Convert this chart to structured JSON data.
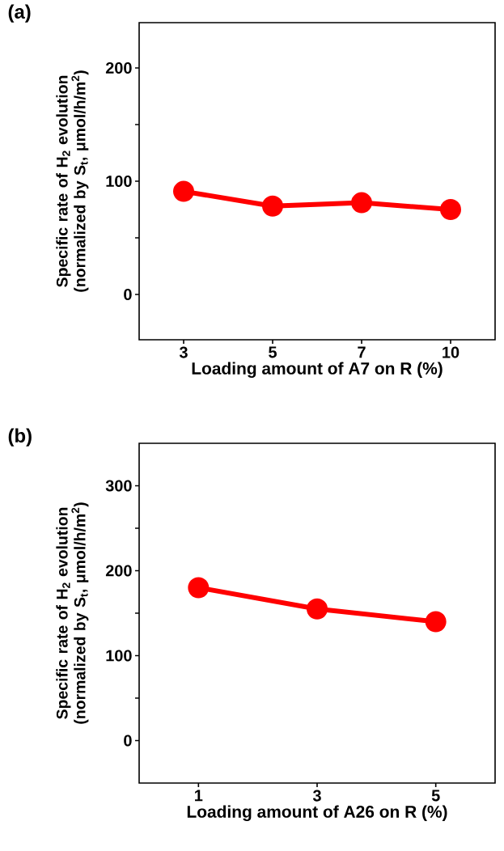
{
  "chart_data": [
    {
      "type": "line",
      "annotations": [
        "(a)"
      ],
      "xlabel": "Loading amount of A7 on R (%)",
      "ylabel": "Specific rate of H$_{2}$ evolution (normalized by S$_{t}$, μmol/h/m$^{2}$)",
      "categories": [
        "3",
        "5",
        "7",
        "10"
      ],
      "series": [
        {
          "color": "#ff0000",
          "values": [
            91,
            78,
            81,
            75
          ]
        }
      ],
      "ylim": [
        -40,
        240
      ],
      "yticks": [
        0,
        {
          "value": 50,
          "label": null
        },
        100,
        {
          "value": 150,
          "label": null
        },
        200
      ],
      "marker": "circle",
      "line_style": "solid"
    },
    {
      "type": "line",
      "annotations": [
        "(b)"
      ],
      "xlabel": "Loading amount of A26 on R (%)",
      "ylabel": "Specific rate of H$_{2}$ evolution (normalized by S$_{t}$, μmol/h/m$^{2}$)",
      "categories": [
        "1",
        "3",
        "5"
      ],
      "series": [
        {
          "color": "#ff0000",
          "values": [
            180,
            155,
            140
          ]
        }
      ],
      "ylim": [
        -50,
        350
      ],
      "yticks": [
        0,
        {
          "value": 50,
          "label": null
        },
        100,
        {
          "value": 150,
          "label": null
        },
        200,
        {
          "value": 250,
          "label": null
        },
        300
      ],
      "marker": "circle",
      "line_style": "solid"
    }
  ]
}
